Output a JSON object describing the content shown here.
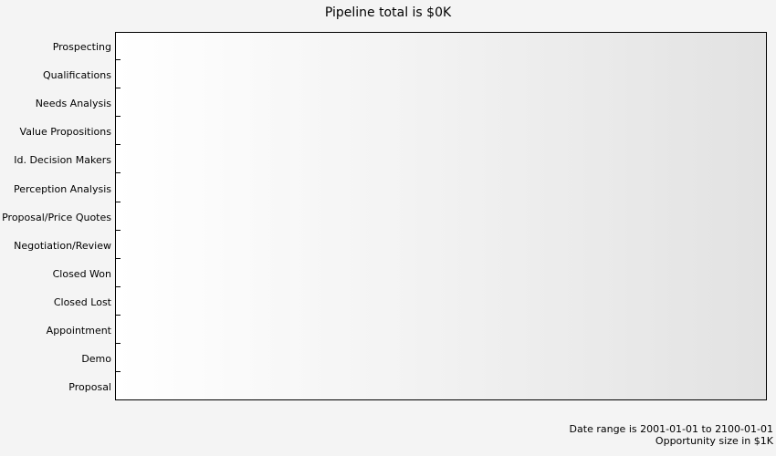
{
  "chart_data": {
    "type": "bar",
    "orientation": "horizontal",
    "title": "Pipeline total is $0K",
    "categories": [
      "Prospecting",
      "Qualifications",
      "Needs Analysis",
      "Value Propositions",
      "Id. Decision Makers",
      "Perception Analysis",
      "Proposal/Price Quotes",
      "Negotiation/Review",
      "Closed Won",
      "Closed Lost",
      "Appointment",
      "Demo",
      "Proposal"
    ],
    "values": [
      0,
      0,
      0,
      0,
      0,
      0,
      0,
      0,
      0,
      0,
      0,
      0,
      0
    ],
    "xlabel": "",
    "ylabel": "",
    "grid": false
  },
  "footer": {
    "date_range": "Date range is 2001-01-01 to 2100-01-01",
    "opportunity_size": "Opportunity size in $1K"
  },
  "colors": {
    "background": "#f4f4f4",
    "plot_border": "#000000",
    "text": "#000000"
  }
}
